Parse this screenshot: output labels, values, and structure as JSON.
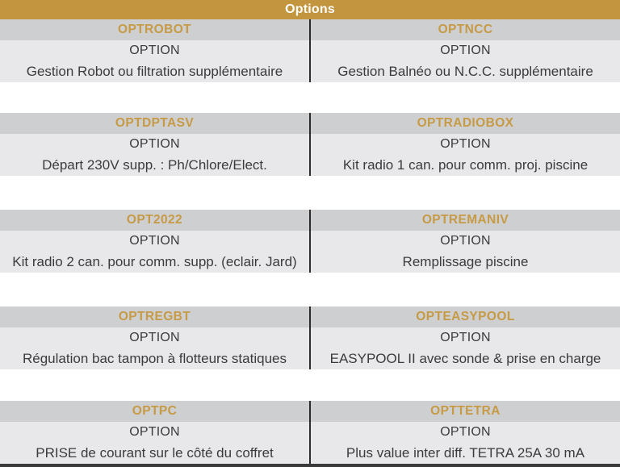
{
  "header": {
    "title": "Options"
  },
  "colors": {
    "header_bg": "#c3953e",
    "header_text": "#ffffff",
    "code_text": "#c79a45",
    "code_row_bg": "#cdcfd1",
    "light_row_bg": "#e8e8ea",
    "body_text": "#3b3b3d",
    "divider": "#2b2b2b"
  },
  "blocks": [
    {
      "left": {
        "code": "OPTROBOT",
        "option": "OPTION",
        "desc": "Gestion Robot ou filtration supplémentaire"
      },
      "right": {
        "code": "OPTNCC",
        "option": "OPTION",
        "desc": "Gestion Balnéo ou N.C.C. supplémentaire"
      }
    },
    {
      "left": {
        "code": "OPTDPTASV",
        "option": "OPTION",
        "desc": "Départ 230V supp. : Ph/Chlore/Elect."
      },
      "right": {
        "code": "OPTRADIOBOX",
        "option": "OPTION",
        "desc": "Kit radio 1 can. pour comm. proj. piscine"
      }
    },
    {
      "left": {
        "code": "OPT2022",
        "option": "OPTION",
        "desc": "Kit radio 2 can. pour comm. supp. (eclair. Jard)"
      },
      "right": {
        "code": "OPTREMANIV",
        "option": "OPTION",
        "desc": "Remplissage piscine"
      }
    },
    {
      "left": {
        "code": "OPTREGBT",
        "option": "OPTION",
        "desc": "Régulation bac tampon à flotteurs statiques"
      },
      "right": {
        "code": "OPTEASYPOOL",
        "option": "OPTION",
        "desc": "EASYPOOL II avec sonde & prise en charge"
      }
    },
    {
      "left": {
        "code": "OPTPC",
        "option": "OPTION",
        "desc": "PRISE de courant sur le côté du coffret"
      },
      "right": {
        "code": "OPTTETRA",
        "option": "OPTION",
        "desc": "Plus value inter diff. TETRA 25A 30 mA"
      }
    }
  ]
}
